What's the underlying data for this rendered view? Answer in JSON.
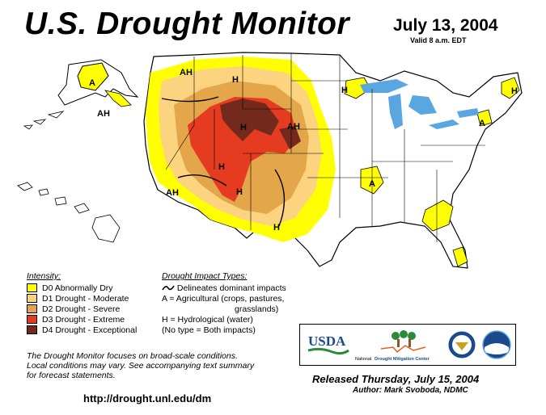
{
  "header": {
    "title": "U.S. Drought Monitor",
    "date": "July 13, 2004",
    "valid": "Valid 8 a.m. EDT"
  },
  "colors": {
    "d0": "#ffff00",
    "d1": "#fcd37f",
    "d2": "#e4a64a",
    "d3": "#e53b21",
    "d4": "#732a1c",
    "water": "#5aa6e0",
    "boundary": "#000000"
  },
  "legend": {
    "heading": "Intensity:",
    "items": [
      {
        "label": "D0 Abnormally Dry",
        "color": "#ffff00"
      },
      {
        "label": "D1 Drought - Moderate",
        "color": "#fcd37f"
      },
      {
        "label": "D2 Drought - Severe",
        "color": "#e4a64a"
      },
      {
        "label": "D3 Drought - Extreme",
        "color": "#e53b21"
      },
      {
        "label": "D4 Drought - Exceptional",
        "color": "#732a1c"
      }
    ]
  },
  "impact": {
    "heading": "Drought Impact Types:",
    "line1": "Delineates dominant impacts",
    "line2": "A = Agricultural (crops, pastures,",
    "line2b": "grasslands)",
    "line3": "H = Hydrological (water)",
    "line4": "(No type = Both impacts)"
  },
  "map_labels": {
    "a_alaska": "A",
    "ah_alaska": "AH",
    "ah_montana": "AH",
    "h_wyoming": "H",
    "h_colorado": "H",
    "ah_dakota": "AH",
    "h_utah": "H",
    "ah_california": "AH",
    "h_arizona": "H",
    "h_texas": "H",
    "a_missouri": "A",
    "h_michigan": "H",
    "h_maine": "H",
    "a_newengland": "A"
  },
  "note": {
    "line1": "The Drought Monitor focuses on broad-scale conditions.",
    "line2": "Local conditions may vary.  See accompanying text summary",
    "line3": "for forecast statements."
  },
  "url": "http://drought.unl.edu/dm",
  "logos": {
    "usda": "USDA",
    "ndmc_prefix": "National",
    "ndmc_name": "Drought Mitigation Center"
  },
  "footer": {
    "released": "Released Thursday, July 15, 2004",
    "author": "Author: Mark Svoboda, NDMC"
  }
}
